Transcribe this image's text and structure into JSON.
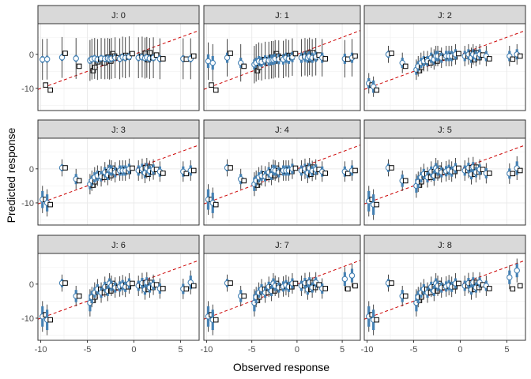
{
  "chart_data": {
    "type": "scatter",
    "facet_prefix": "J: ",
    "facets": [
      "0",
      "1",
      "2",
      "3",
      "4",
      "5",
      "6",
      "7",
      "8"
    ],
    "xlabel": "Observed response",
    "ylabel": "Predicted response",
    "xlim": [
      -10.3,
      7.0
    ],
    "ylim": [
      -16.5,
      9.0
    ],
    "x_ticks": [
      -10,
      -5,
      0,
      5
    ],
    "x_tick_labels": [
      "-10",
      "-5",
      "0",
      "5"
    ],
    "y_ticks": [
      -10,
      0
    ],
    "y_tick_labels": [
      "-10",
      "0"
    ],
    "grid": true,
    "reference_line": {
      "slope": 1,
      "intercept": 0,
      "style": "dashed",
      "color": "#cc0000"
    },
    "series": [
      {
        "marker": "open-square",
        "color": "#000000"
      },
      {
        "marker": "open-circle",
        "color": "#4682b4"
      }
    ],
    "colors": {
      "interval_outer": "#333333",
      "interval_inner": "#4682b4",
      "circle_stroke": "#4682b4",
      "square_stroke": "#000000",
      "strip_fill": "#d9d9d9"
    },
    "observed": [
      -9.6,
      -9.1,
      -7.5,
      -6.0,
      -4.5,
      -4.3,
      -4.0,
      -3.7,
      -3.3,
      -2.9,
      -2.6,
      -2.4,
      -2.2,
      -1.8,
      -1.3,
      -1.0,
      -0.7,
      -0.3,
      0.7,
      1.1,
      1.4,
      1.6,
      1.9,
      2.3,
      3.0,
      5.5,
      6.3
    ],
    "panels": [
      {
        "circles": [
          -1.5,
          -1.4,
          -0.9,
          -1.2,
          -1.8,
          -1.4,
          -1.2,
          -1.5,
          -1.2,
          -1.3,
          -1.2,
          -1.4,
          -1.2,
          -1.0,
          -1.3,
          -0.8,
          -1.0,
          -0.7,
          -1.0,
          -0.8,
          -1.1,
          -0.9,
          -1.2,
          -1.0,
          -1.3,
          -1.3,
          -1.3
        ],
        "squares": [
          -9.0,
          -10.5,
          0.3,
          -3.5,
          -4.8,
          -3.8,
          -2.2,
          -1.5,
          -2.5,
          -0.8,
          -2.0,
          0.2,
          -0.5,
          -1.0,
          -0.7,
          -0.3,
          -0.8,
          0.2,
          -0.5,
          0.3,
          -1.6,
          0.5,
          -1.0,
          -0.2,
          -1.3,
          -1.4,
          -0.5
        ],
        "inner_half": [
          1.0,
          1.0,
          1.0,
          1.0,
          1.0,
          1.0,
          1.0,
          1.0,
          1.0,
          1.0,
          1.0,
          1.0,
          1.0,
          1.0,
          1.0,
          1.0,
          1.0,
          1.0,
          1.0,
          1.0,
          1.0,
          1.0,
          1.0,
          1.0,
          1.0,
          1.0,
          1.0
        ],
        "outer_half": [
          6.0,
          6.0,
          6.0,
          6.0,
          6.0,
          6.0,
          6.0,
          6.0,
          6.0,
          6.0,
          6.0,
          6.0,
          6.0,
          6.0,
          6.0,
          6.0,
          6.0,
          6.0,
          6.0,
          6.0,
          6.0,
          6.0,
          6.0,
          6.0,
          6.0,
          6.0,
          6.0
        ]
      },
      {
        "circles": [
          -2.0,
          -2.5,
          -1.0,
          -2.5,
          -3.0,
          -2.5,
          -2.0,
          -2.2,
          -1.8,
          -1.8,
          -1.6,
          -1.6,
          -1.3,
          -1.4,
          -1.5,
          -1.0,
          -1.3,
          -0.8,
          -1.0,
          -0.7,
          -1.0,
          -0.6,
          -1.0,
          -0.7,
          -1.0,
          -1.3,
          -1.0
        ],
        "squares": [
          -9.0,
          -10.5,
          0.3,
          -3.5,
          -4.8,
          -3.8,
          -2.2,
          -1.5,
          -2.5,
          -0.8,
          -2.0,
          0.2,
          -0.5,
          -1.0,
          -0.7,
          -0.3,
          -0.8,
          0.2,
          -0.5,
          0.3,
          -1.6,
          0.5,
          -1.0,
          -0.2,
          -1.3,
          -1.4,
          -0.5
        ],
        "inner_half": [
          2.0,
          2.0,
          1.5,
          1.5,
          1.5,
          1.5,
          1.5,
          1.5,
          1.5,
          1.5,
          1.5,
          1.5,
          1.5,
          1.5,
          1.5,
          1.5,
          1.5,
          1.5,
          1.5,
          1.5,
          1.5,
          1.5,
          1.5,
          1.5,
          1.5,
          1.5,
          1.5
        ],
        "outer_half": [
          5.5,
          5.5,
          5.5,
          5.5,
          5.5,
          5.5,
          5.5,
          5.5,
          5.5,
          5.5,
          5.5,
          5.5,
          5.5,
          5.5,
          5.5,
          5.5,
          5.5,
          5.5,
          5.5,
          5.5,
          5.5,
          5.5,
          5.5,
          5.5,
          5.5,
          5.5,
          5.5
        ]
      },
      {
        "circles": [
          -8.5,
          -9.5,
          0.0,
          -2.5,
          -4.5,
          -3.5,
          -2.5,
          -2.0,
          -2.0,
          -1.0,
          -1.5,
          -0.5,
          -0.5,
          -1.0,
          -0.5,
          -0.5,
          -0.5,
          0.0,
          -0.5,
          0.0,
          -1.0,
          0.0,
          -0.5,
          0.0,
          -0.5,
          -0.5,
          0.0
        ],
        "squares": [
          -9.0,
          -10.5,
          0.3,
          -3.5,
          -4.8,
          -3.8,
          -2.2,
          -1.5,
          -2.5,
          -0.8,
          -2.0,
          0.2,
          -0.5,
          -1.0,
          -0.7,
          -0.3,
          -0.8,
          0.2,
          -0.5,
          0.3,
          -1.6,
          0.5,
          -1.0,
          -0.2,
          -1.3,
          -1.4,
          -0.5
        ],
        "inner_half": [
          1.5,
          1.8,
          1.0,
          1.5,
          1.5,
          1.5,
          1.5,
          1.5,
          1.5,
          1.5,
          1.5,
          1.5,
          1.5,
          1.5,
          1.5,
          1.5,
          1.5,
          1.5,
          1.5,
          1.5,
          1.5,
          1.5,
          1.5,
          1.5,
          1.5,
          1.5,
          1.5
        ],
        "outer_half": [
          3.0,
          3.0,
          2.5,
          3.0,
          3.0,
          3.0,
          3.0,
          3.0,
          3.0,
          3.0,
          3.0,
          3.0,
          3.0,
          3.0,
          3.0,
          3.0,
          3.0,
          3.0,
          3.0,
          3.0,
          3.0,
          3.0,
          3.0,
          3.0,
          3.0,
          3.0,
          3.0
        ]
      },
      {
        "circles": [
          -9.0,
          -10.0,
          0.3,
          -3.0,
          -4.5,
          -3.5,
          -2.5,
          -2.0,
          -2.2,
          -1.0,
          -1.8,
          -0.3,
          -0.5,
          -1.0,
          -0.5,
          -0.5,
          -0.5,
          0.0,
          -0.5,
          0.0,
          -1.2,
          0.2,
          -0.6,
          -0.2,
          -0.8,
          -0.8,
          -0.5
        ],
        "squares": [
          -9.0,
          -10.5,
          0.3,
          -3.5,
          -4.8,
          -3.8,
          -2.2,
          -1.5,
          -2.5,
          -0.8,
          -2.0,
          0.2,
          -0.5,
          -1.0,
          -0.7,
          -0.3,
          -0.8,
          0.2,
          -0.5,
          0.3,
          -1.6,
          0.5,
          -1.0,
          -0.2,
          -1.3,
          -1.4,
          -0.5
        ],
        "inner_half": [
          2.5,
          2.5,
          1.0,
          1.5,
          1.5,
          1.5,
          1.5,
          1.5,
          1.5,
          1.5,
          1.5,
          1.5,
          1.5,
          1.5,
          1.5,
          1.5,
          1.5,
          1.5,
          1.5,
          1.5,
          1.5,
          1.5,
          1.5,
          1.5,
          1.5,
          1.5,
          1.5
        ],
        "outer_half": [
          4.0,
          4.0,
          2.5,
          3.0,
          3.0,
          3.0,
          3.0,
          3.0,
          3.0,
          3.0,
          3.0,
          3.0,
          3.0,
          3.0,
          3.0,
          3.0,
          3.0,
          3.0,
          3.0,
          3.0,
          3.0,
          3.0,
          3.0,
          3.0,
          3.0,
          3.0,
          3.0
        ]
      },
      {
        "circles": [
          -9.0,
          -10.0,
          0.3,
          -3.0,
          -4.5,
          -3.5,
          -2.5,
          -2.0,
          -2.2,
          -1.0,
          -1.8,
          -0.3,
          -0.5,
          -1.0,
          -0.5,
          -0.5,
          -0.5,
          0.0,
          -0.5,
          0.0,
          -1.2,
          0.2,
          -0.6,
          -0.2,
          -0.8,
          -0.8,
          -0.5
        ],
        "squares": [
          -9.0,
          -10.5,
          0.3,
          -3.5,
          -4.8,
          -3.8,
          -2.2,
          -1.5,
          -2.5,
          -0.8,
          -2.0,
          0.2,
          -0.5,
          -1.0,
          -0.7,
          -0.3,
          -0.8,
          0.2,
          -0.5,
          0.3,
          -1.6,
          0.5,
          -1.0,
          -0.2,
          -1.3,
          -1.4,
          -0.5
        ],
        "inner_half": [
          3.0,
          3.0,
          1.0,
          1.5,
          2.0,
          1.5,
          1.5,
          1.5,
          1.5,
          1.5,
          1.5,
          1.5,
          1.5,
          1.5,
          1.5,
          1.5,
          1.5,
          1.5,
          1.5,
          1.5,
          1.5,
          1.5,
          1.5,
          1.5,
          1.5,
          1.5,
          1.5
        ],
        "outer_half": [
          4.5,
          4.5,
          2.5,
          3.0,
          3.5,
          3.0,
          3.0,
          3.0,
          3.0,
          3.0,
          3.0,
          3.0,
          3.0,
          3.0,
          3.0,
          3.0,
          3.0,
          3.0,
          3.0,
          3.0,
          3.0,
          3.0,
          3.0,
          3.0,
          3.0,
          3.0,
          3.0
        ]
      },
      {
        "circles": [
          -9.5,
          -10.5,
          0.3,
          -3.5,
          -5.0,
          -3.8,
          -2.5,
          -1.5,
          -2.5,
          -0.8,
          -2.0,
          0.2,
          -0.5,
          -1.0,
          -0.7,
          -0.3,
          -0.8,
          0.2,
          -0.5,
          0.3,
          -1.6,
          0.5,
          -1.0,
          -0.2,
          -1.3,
          -1.4,
          0.2
        ],
        "squares": [
          -9.0,
          -10.5,
          0.3,
          -3.5,
          -4.8,
          -3.8,
          -2.2,
          -1.5,
          -2.5,
          -0.8,
          -2.0,
          0.2,
          -0.5,
          -1.0,
          -0.7,
          -0.3,
          -0.8,
          0.2,
          -0.5,
          0.3,
          -1.6,
          0.5,
          -1.0,
          -0.2,
          -1.3,
          -1.4,
          -0.5
        ],
        "inner_half": [
          3.0,
          3.0,
          1.2,
          1.8,
          2.0,
          1.8,
          1.5,
          1.5,
          1.5,
          1.5,
          1.5,
          1.5,
          1.5,
          1.5,
          1.5,
          1.5,
          1.5,
          1.5,
          1.5,
          1.5,
          1.5,
          1.5,
          1.5,
          1.5,
          1.5,
          1.5,
          2.0
        ],
        "outer_half": [
          4.5,
          4.5,
          2.5,
          3.0,
          3.5,
          3.0,
          3.0,
          3.0,
          3.0,
          3.0,
          3.0,
          3.0,
          3.0,
          3.0,
          3.0,
          3.0,
          3.0,
          3.0,
          3.0,
          3.0,
          3.0,
          3.0,
          3.0,
          3.0,
          3.0,
          3.0,
          3.5
        ]
      },
      {
        "circles": [
          -9.5,
          -10.5,
          0.3,
          -3.5,
          -5.5,
          -3.8,
          -2.5,
          -1.5,
          -2.5,
          -0.8,
          -2.0,
          0.2,
          -0.5,
          -1.0,
          -0.7,
          -0.3,
          -0.8,
          0.2,
          -0.5,
          0.3,
          -1.6,
          0.5,
          -1.0,
          -0.2,
          -1.3,
          -1.4,
          0.5
        ],
        "squares": [
          -9.0,
          -10.5,
          0.3,
          -3.5,
          -4.8,
          -3.8,
          -2.2,
          -1.5,
          -2.5,
          -0.8,
          -2.0,
          0.2,
          -0.5,
          -1.0,
          -0.7,
          -0.3,
          -0.8,
          0.2,
          -0.5,
          0.3,
          -1.6,
          0.5,
          -1.0,
          -0.2,
          -1.3,
          -1.4,
          -0.5
        ],
        "inner_half": [
          3.0,
          3.0,
          1.2,
          1.8,
          2.5,
          1.8,
          1.5,
          1.5,
          1.5,
          1.5,
          1.5,
          1.5,
          1.5,
          1.5,
          1.5,
          1.5,
          1.5,
          1.5,
          1.5,
          1.5,
          1.5,
          1.5,
          1.5,
          1.5,
          1.5,
          1.5,
          2.0
        ],
        "outer_half": [
          4.5,
          4.5,
          2.5,
          3.0,
          4.0,
          3.0,
          3.0,
          3.0,
          3.0,
          3.0,
          3.0,
          3.0,
          3.0,
          3.0,
          3.0,
          3.0,
          3.0,
          3.0,
          3.0,
          3.0,
          3.0,
          3.0,
          3.0,
          3.0,
          3.0,
          3.0,
          3.5
        ]
      },
      {
        "circles": [
          -9.5,
          -10.5,
          0.3,
          -3.5,
          -5.5,
          -3.8,
          -2.5,
          -1.5,
          -2.5,
          -0.8,
          -2.0,
          0.2,
          -0.5,
          -1.0,
          -0.7,
          -0.3,
          -0.8,
          0.2,
          -0.5,
          0.3,
          -1.6,
          0.5,
          -1.0,
          0.5,
          -1.3,
          1.5,
          2.5
        ],
        "squares": [
          -9.0,
          -10.5,
          0.3,
          -3.5,
          -4.8,
          -3.8,
          -2.2,
          -1.5,
          -2.5,
          -0.8,
          -2.0,
          0.2,
          -0.5,
          -1.0,
          -0.7,
          -0.3,
          -0.8,
          0.2,
          -0.5,
          0.3,
          -1.6,
          0.5,
          -1.0,
          -0.2,
          -1.3,
          -1.4,
          -0.5
        ],
        "inner_half": [
          3.0,
          3.0,
          1.2,
          1.8,
          2.5,
          1.8,
          1.5,
          1.5,
          1.5,
          1.5,
          1.5,
          1.5,
          1.5,
          1.5,
          1.5,
          1.5,
          1.5,
          1.5,
          1.5,
          1.5,
          1.5,
          1.5,
          1.5,
          1.5,
          1.5,
          2.0,
          2.0
        ],
        "outer_half": [
          4.5,
          4.5,
          2.5,
          3.0,
          4.0,
          3.0,
          3.0,
          3.0,
          3.0,
          3.0,
          3.0,
          3.0,
          3.0,
          3.0,
          3.0,
          3.0,
          3.0,
          3.0,
          3.0,
          3.0,
          3.0,
          3.0,
          3.0,
          3.0,
          3.0,
          3.5,
          3.5
        ]
      },
      {
        "circles": [
          -9.5,
          -10.5,
          0.3,
          -3.5,
          -5.5,
          -3.8,
          -2.5,
          -1.5,
          -2.5,
          -0.8,
          -2.0,
          0.2,
          -0.5,
          -1.0,
          -0.7,
          -0.3,
          -0.8,
          0.2,
          -0.5,
          0.3,
          -1.6,
          0.5,
          -1.0,
          0.5,
          -0.5,
          2.0,
          4.0
        ],
        "squares": [
          -9.0,
          -10.5,
          0.3,
          -3.5,
          -4.8,
          -3.8,
          -2.2,
          -1.5,
          -2.5,
          -0.8,
          -2.0,
          0.2,
          -0.5,
          -1.0,
          -0.7,
          -0.3,
          -0.8,
          0.2,
          -0.5,
          0.3,
          -1.6,
          0.5,
          -1.0,
          -0.2,
          -1.3,
          -1.4,
          -0.5
        ],
        "inner_half": [
          3.0,
          3.0,
          1.2,
          1.8,
          2.5,
          1.8,
          1.5,
          1.5,
          1.5,
          1.5,
          1.5,
          1.5,
          1.5,
          1.5,
          1.5,
          1.5,
          1.5,
          1.5,
          1.5,
          1.5,
          1.5,
          1.5,
          1.5,
          1.5,
          1.5,
          2.0,
          2.0
        ],
        "outer_half": [
          4.5,
          4.5,
          2.5,
          3.0,
          4.0,
          3.0,
          3.0,
          3.0,
          3.0,
          3.0,
          3.0,
          3.0,
          3.0,
          3.0,
          3.0,
          3.0,
          3.0,
          3.0,
          3.0,
          3.0,
          3.0,
          3.0,
          3.0,
          3.0,
          3.0,
          3.5,
          3.5
        ]
      }
    ]
  }
}
